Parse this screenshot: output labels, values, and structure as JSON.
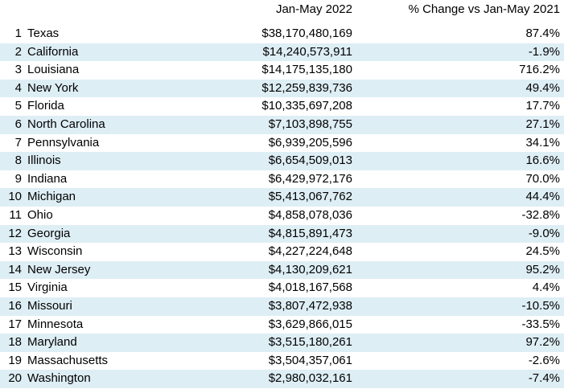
{
  "columns": {
    "value_header": "Jan-May 2022",
    "change_header": "% Change vs Jan-May 2021"
  },
  "rows": [
    {
      "rank": "1",
      "state": "Texas",
      "value": "$38,170,480,169",
      "change": "87.4%"
    },
    {
      "rank": "2",
      "state": "California",
      "value": "$14,240,573,911",
      "change": "-1.9%"
    },
    {
      "rank": "3",
      "state": "Louisiana",
      "value": "$14,175,135,180",
      "change": "716.2%"
    },
    {
      "rank": "4",
      "state": "New York",
      "value": "$12,259,839,736",
      "change": "49.4%"
    },
    {
      "rank": "5",
      "state": "Florida",
      "value": "$10,335,697,208",
      "change": "17.7%"
    },
    {
      "rank": "6",
      "state": "North Carolina",
      "value": "$7,103,898,755",
      "change": "27.1%"
    },
    {
      "rank": "7",
      "state": "Pennsylvania",
      "value": "$6,939,205,596",
      "change": "34.1%"
    },
    {
      "rank": "8",
      "state": "Illinois",
      "value": "$6,654,509,013",
      "change": "16.6%"
    },
    {
      "rank": "9",
      "state": "Indiana",
      "value": "$6,429,972,176",
      "change": "70.0%"
    },
    {
      "rank": "10",
      "state": "Michigan",
      "value": "$5,413,067,762",
      "change": "44.4%"
    },
    {
      "rank": "11",
      "state": "Ohio",
      "value": "$4,858,078,036",
      "change": "-32.8%"
    },
    {
      "rank": "12",
      "state": "Georgia",
      "value": "$4,815,891,473",
      "change": "-9.0%"
    },
    {
      "rank": "13",
      "state": "Wisconsin",
      "value": "$4,227,224,648",
      "change": "24.5%"
    },
    {
      "rank": "14",
      "state": "New Jersey",
      "value": "$4,130,209,621",
      "change": "95.2%"
    },
    {
      "rank": "15",
      "state": "Virginia",
      "value": "$4,018,167,568",
      "change": "4.4%"
    },
    {
      "rank": "16",
      "state": "Missouri",
      "value": "$3,807,472,938",
      "change": "-10.5%"
    },
    {
      "rank": "17",
      "state": "Minnesota",
      "value": "$3,629,866,015",
      "change": "-33.5%"
    },
    {
      "rank": "18",
      "state": "Maryland",
      "value": "$3,515,180,261",
      "change": "97.2%"
    },
    {
      "rank": "19",
      "state": "Massachusetts",
      "value": "$3,504,357,061",
      "change": "-2.6%"
    },
    {
      "rank": "20",
      "state": "Washington",
      "value": "$2,980,032,161",
      "change": "-7.4%"
    }
  ],
  "colors": {
    "stripe": "#deeef5",
    "background": "#ffffff",
    "text": "#000000"
  }
}
